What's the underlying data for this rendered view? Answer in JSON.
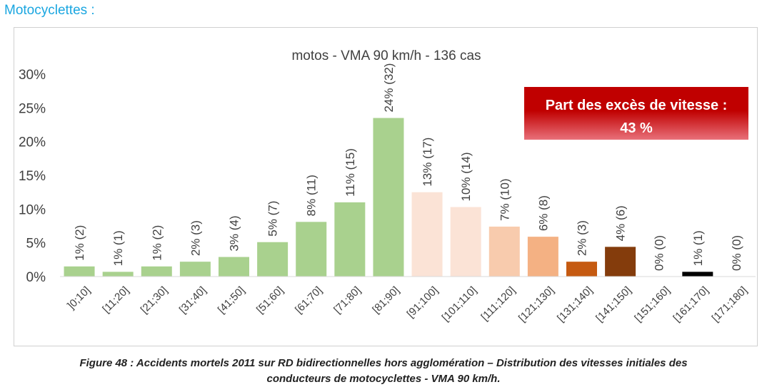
{
  "heading": "Motocyclettes :",
  "caption": {
    "line1": "Figure 48 : Accidents mortels 2011 sur RD bidirectionnelles hors agglomération – Distribution des vitesses initiales des",
    "line2": "conducteurs de motocyclettes - VMA 90 km/h."
  },
  "chart_data": {
    "type": "bar",
    "title": "motos - VMA 90 km/h - 136 cas",
    "categories": [
      "]0;10]",
      "[11;20]",
      "[21;30]",
      "[31;40]",
      "[41;50]",
      "[51;60]",
      "[61;70]",
      "[71;80]",
      "[81;90]",
      "[91;100]",
      "[101;110]",
      "[111;120]",
      "[121;130]",
      "[131;140]",
      "[141;150]",
      "[151;160]",
      "[161;170]",
      "[171;180]"
    ],
    "values": [
      1.5,
      0.7,
      1.5,
      2.2,
      2.9,
      5.1,
      8.1,
      11.0,
      23.5,
      12.5,
      10.3,
      7.4,
      5.9,
      2.2,
      4.4,
      0,
      0.7,
      0
    ],
    "data_labels": [
      "1% (2)",
      "1% (1)",
      "1% (2)",
      "2% (3)",
      "3% (4)",
      "5% (7)",
      "8% (11)",
      "11% (15)",
      "24% (32)",
      "13% (17)",
      "10% (14)",
      "7% (10)",
      "6% (8)",
      "2% (3)",
      "4% (6)",
      "0% (0)",
      "1% (1)",
      "0% (0)"
    ],
    "colors": [
      "#a9d18e",
      "#a9d18e",
      "#a9d18e",
      "#a9d18e",
      "#a9d18e",
      "#a9d18e",
      "#a9d18e",
      "#a9d18e",
      "#a9d18e",
      "#fbe3d6",
      "#fbe3d6",
      "#f8cbad",
      "#f4b183",
      "#c55a11",
      "#843c0c",
      "#ffffff",
      "#000000",
      "#ffffff"
    ],
    "ylim": [
      0,
      30
    ],
    "yticks": [
      0,
      5,
      10,
      15,
      20,
      25,
      30
    ],
    "ytick_labels": [
      "0%",
      "5%",
      "10%",
      "15%",
      "20%",
      "25%",
      "30%"
    ],
    "xlabel": "",
    "ylabel": "",
    "grid": false,
    "annotation": {
      "line1": "Part des excès de vitesse :",
      "line2": "43 %",
      "color_top": "#c00000",
      "color_bottom": "#e8707a"
    }
  }
}
